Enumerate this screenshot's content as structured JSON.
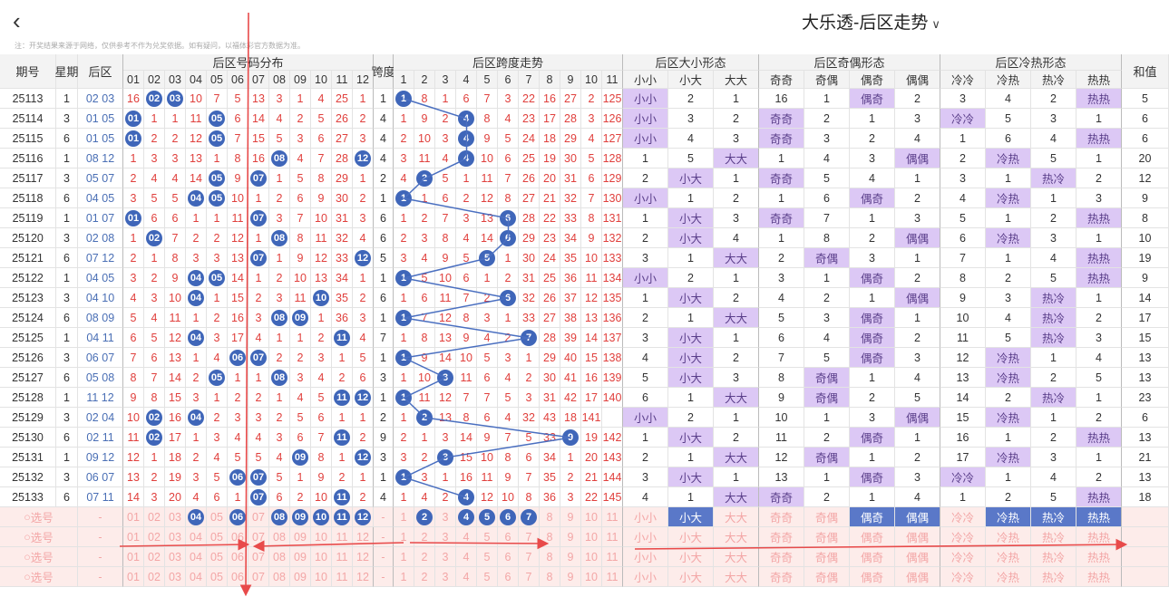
{
  "header": {
    "title": "大乐透-后区走势",
    "notice": "注：开奖结果来源于网络，仅供参考不作为兑奖依据。如有疑问，以福体彩官方数据为准。"
  },
  "columns": {
    "issue": "期号",
    "week": "星期",
    "back": "后区",
    "dist_group": "后区号码分布",
    "span": "跨度",
    "span_group": "后区跨度走势",
    "size_group": "后区大小形态",
    "oddeven_group": "后区奇偶形态",
    "hotcold_group": "后区冷热形态",
    "sum": "和值",
    "nums": [
      "01",
      "02",
      "03",
      "04",
      "05",
      "06",
      "07",
      "08",
      "09",
      "10",
      "11",
      "12"
    ],
    "spans": [
      "1",
      "2",
      "3",
      "4",
      "5",
      "6",
      "7",
      "8",
      "9",
      "10",
      "11"
    ],
    "size": [
      "小小",
      "小大",
      "大大"
    ],
    "oddeven": [
      "奇奇",
      "奇偶",
      "偶奇",
      "偶偶"
    ],
    "hotcold": [
      "冷冷",
      "冷热",
      "热冷",
      "热热"
    ]
  },
  "rows": [
    {
      "issue": "25113",
      "week": "1",
      "back": "02 03",
      "nums": [
        "16",
        "02",
        "03",
        "10",
        "7",
        "5",
        "13",
        "3",
        "1",
        "4",
        "25",
        "1"
      ],
      "balls": [
        2,
        3
      ],
      "span": "1",
      "spanvals": [
        "1",
        "8",
        "1",
        "6",
        "7",
        "3",
        "22",
        "16",
        "27",
        "2",
        "125"
      ],
      "spanball": 1,
      "size": [
        "小小",
        "2",
        "1"
      ],
      "sizeHit": 0,
      "oe": [
        "16",
        "1",
        "偶奇",
        "2"
      ],
      "oeHit": 2,
      "hc": [
        "3",
        "4",
        "2",
        "热热"
      ],
      "hcHit": 3,
      "sum": "5"
    },
    {
      "issue": "25114",
      "week": "3",
      "back": "01 05",
      "nums": [
        "01",
        "1",
        "1",
        "11",
        "05",
        "6",
        "14",
        "4",
        "2",
        "5",
        "26",
        "2"
      ],
      "balls": [
        1,
        5
      ],
      "span": "4",
      "spanvals": [
        "1",
        "9",
        "2",
        "4",
        "8",
        "4",
        "23",
        "17",
        "28",
        "3",
        "126"
      ],
      "spanball": 4,
      "size": [
        "小小",
        "3",
        "2"
      ],
      "sizeHit": 0,
      "oe": [
        "奇奇",
        "2",
        "1",
        "3"
      ],
      "oeHit": 0,
      "hc": [
        "冷冷",
        "5",
        "3",
        "1"
      ],
      "hcHit": 0,
      "sum": "6"
    },
    {
      "issue": "25115",
      "week": "6",
      "back": "01 05",
      "nums": [
        "01",
        "2",
        "2",
        "12",
        "05",
        "7",
        "15",
        "5",
        "3",
        "6",
        "27",
        "3"
      ],
      "balls": [
        1,
        5
      ],
      "span": "4",
      "spanvals": [
        "2",
        "10",
        "3",
        "4",
        "9",
        "5",
        "24",
        "18",
        "29",
        "4",
        "127"
      ],
      "spanball": 4,
      "size": [
        "小小",
        "4",
        "3"
      ],
      "sizeHit": 0,
      "oe": [
        "奇奇",
        "3",
        "2",
        "4"
      ],
      "oeHit": 0,
      "hc": [
        "1",
        "6",
        "4",
        "热热"
      ],
      "hcHit": 3,
      "sum": "6"
    },
    {
      "issue": "25116",
      "week": "1",
      "back": "08 12",
      "nums": [
        "1",
        "3",
        "3",
        "13",
        "1",
        "8",
        "16",
        "08",
        "4",
        "7",
        "28",
        "12"
      ],
      "balls": [
        8,
        12
      ],
      "span": "4",
      "spanvals": [
        "3",
        "11",
        "4",
        "4",
        "10",
        "6",
        "25",
        "19",
        "30",
        "5",
        "128"
      ],
      "spanball": 4,
      "size": [
        "1",
        "5",
        "大大"
      ],
      "sizeHit": 2,
      "oe": [
        "1",
        "4",
        "3",
        "偶偶"
      ],
      "oeHit": 3,
      "hc": [
        "2",
        "冷热",
        "5",
        "1"
      ],
      "hcHit": 1,
      "sum": "20"
    },
    {
      "issue": "25117",
      "week": "3",
      "back": "05 07",
      "nums": [
        "2",
        "4",
        "4",
        "14",
        "05",
        "9",
        "07",
        "1",
        "5",
        "8",
        "29",
        "1"
      ],
      "balls": [
        5,
        7
      ],
      "span": "2",
      "spanvals": [
        "4",
        "2",
        "5",
        "1",
        "11",
        "7",
        "26",
        "20",
        "31",
        "6",
        "129"
      ],
      "spanball": 2,
      "size": [
        "2",
        "小大",
        "1"
      ],
      "sizeHit": 1,
      "oe": [
        "奇奇",
        "5",
        "4",
        "1"
      ],
      "oeHit": 0,
      "hc": [
        "3",
        "1",
        "热冷",
        "2"
      ],
      "hcHit": 2,
      "sum": "12"
    },
    {
      "issue": "25118",
      "week": "6",
      "back": "04 05",
      "nums": [
        "3",
        "5",
        "5",
        "04",
        "05",
        "10",
        "1",
        "2",
        "6",
        "9",
        "30",
        "2"
      ],
      "balls": [
        4,
        5
      ],
      "span": "1",
      "spanvals": [
        "1",
        "1",
        "6",
        "2",
        "12",
        "8",
        "27",
        "21",
        "32",
        "7",
        "130"
      ],
      "spanball": 1,
      "size": [
        "小小",
        "1",
        "2"
      ],
      "sizeHit": 0,
      "oe": [
        "1",
        "6",
        "偶奇",
        "2"
      ],
      "oeHit": 2,
      "hc": [
        "4",
        "冷热",
        "1",
        "3"
      ],
      "hcHit": 1,
      "sum": "9"
    },
    {
      "issue": "25119",
      "week": "1",
      "back": "01 07",
      "nums": [
        "01",
        "6",
        "6",
        "1",
        "1",
        "11",
        "07",
        "3",
        "7",
        "10",
        "31",
        "3"
      ],
      "balls": [
        1,
        7
      ],
      "span": "6",
      "spanvals": [
        "1",
        "2",
        "7",
        "3",
        "13",
        "6",
        "28",
        "22",
        "33",
        "8",
        "131"
      ],
      "spanball": 6,
      "size": [
        "1",
        "小大",
        "3"
      ],
      "sizeHit": 1,
      "oe": [
        "奇奇",
        "7",
        "1",
        "3"
      ],
      "oeHit": 0,
      "hc": [
        "5",
        "1",
        "2",
        "热热"
      ],
      "hcHit": 3,
      "sum": "8"
    },
    {
      "issue": "25120",
      "week": "3",
      "back": "02 08",
      "nums": [
        "1",
        "02",
        "7",
        "2",
        "2",
        "12",
        "1",
        "08",
        "8",
        "11",
        "32",
        "4"
      ],
      "balls": [
        2,
        8
      ],
      "span": "6",
      "spanvals": [
        "2",
        "3",
        "8",
        "4",
        "14",
        "6",
        "29",
        "23",
        "34",
        "9",
        "132"
      ],
      "spanball": 6,
      "size": [
        "2",
        "小大",
        "4"
      ],
      "sizeHit": 1,
      "oe": [
        "1",
        "8",
        "2",
        "偶偶"
      ],
      "oeHit": 3,
      "hc": [
        "6",
        "冷热",
        "3",
        "1"
      ],
      "hcHit": 1,
      "sum": "10"
    },
    {
      "issue": "25121",
      "week": "6",
      "back": "07 12",
      "nums": [
        "2",
        "1",
        "8",
        "3",
        "3",
        "13",
        "07",
        "1",
        "9",
        "12",
        "33",
        "12"
      ],
      "balls": [
        7,
        12
      ],
      "span": "5",
      "spanvals": [
        "3",
        "4",
        "9",
        "5",
        "5",
        "1",
        "30",
        "24",
        "35",
        "10",
        "133"
      ],
      "spanball": 5,
      "size": [
        "3",
        "1",
        "大大"
      ],
      "sizeHit": 2,
      "oe": [
        "2",
        "奇偶",
        "3",
        "1"
      ],
      "oeHit": 1,
      "hc": [
        "7",
        "1",
        "4",
        "热热"
      ],
      "hcHit": 3,
      "sum": "19"
    },
    {
      "issue": "25122",
      "week": "1",
      "back": "04 05",
      "nums": [
        "3",
        "2",
        "9",
        "04",
        "05",
        "14",
        "1",
        "2",
        "10",
        "13",
        "34",
        "1"
      ],
      "balls": [
        4,
        5
      ],
      "span": "1",
      "spanvals": [
        "1",
        "5",
        "10",
        "6",
        "1",
        "2",
        "31",
        "25",
        "36",
        "11",
        "134"
      ],
      "spanball": 1,
      "size": [
        "小小",
        "2",
        "1"
      ],
      "sizeHit": 0,
      "oe": [
        "3",
        "1",
        "偶奇",
        "2"
      ],
      "oeHit": 2,
      "hc": [
        "8",
        "2",
        "5",
        "热热"
      ],
      "hcHit": 3,
      "sum": "9"
    },
    {
      "issue": "25123",
      "week": "3",
      "back": "04 10",
      "nums": [
        "4",
        "3",
        "10",
        "04",
        "1",
        "15",
        "2",
        "3",
        "11",
        "10",
        "35",
        "2"
      ],
      "balls": [
        4,
        10
      ],
      "span": "6",
      "spanvals": [
        "1",
        "6",
        "11",
        "7",
        "2",
        "6",
        "32",
        "26",
        "37",
        "12",
        "135"
      ],
      "spanball": 6,
      "size": [
        "1",
        "小大",
        "2"
      ],
      "sizeHit": 1,
      "oe": [
        "4",
        "2",
        "1",
        "偶偶"
      ],
      "oeHit": 3,
      "hc": [
        "9",
        "3",
        "热冷",
        "1"
      ],
      "hcHit": 2,
      "sum": "14"
    },
    {
      "issue": "25124",
      "week": "6",
      "back": "08 09",
      "nums": [
        "5",
        "4",
        "11",
        "1",
        "2",
        "16",
        "3",
        "08",
        "09",
        "1",
        "36",
        "3"
      ],
      "balls": [
        8,
        9
      ],
      "span": "1",
      "spanvals": [
        "1",
        "7",
        "12",
        "8",
        "3",
        "1",
        "33",
        "27",
        "38",
        "13",
        "136"
      ],
      "spanball": 1,
      "size": [
        "2",
        "1",
        "大大"
      ],
      "sizeHit": 2,
      "oe": [
        "5",
        "3",
        "偶奇",
        "1"
      ],
      "oeHit": 2,
      "hc": [
        "10",
        "4",
        "热冷",
        "2"
      ],
      "hcHit": 2,
      "sum": "17"
    },
    {
      "issue": "25125",
      "week": "1",
      "back": "04 11",
      "nums": [
        "6",
        "5",
        "12",
        "04",
        "3",
        "17",
        "4",
        "1",
        "1",
        "2",
        "11",
        "4"
      ],
      "balls": [
        4,
        11
      ],
      "span": "7",
      "spanvals": [
        "1",
        "8",
        "13",
        "9",
        "4",
        "2",
        "7",
        "28",
        "39",
        "14",
        "137"
      ],
      "spanball": 7,
      "size": [
        "3",
        "小大",
        "1"
      ],
      "sizeHit": 1,
      "oe": [
        "6",
        "4",
        "偶奇",
        "2"
      ],
      "oeHit": 2,
      "hc": [
        "11",
        "5",
        "热冷",
        "3"
      ],
      "hcHit": 2,
      "sum": "15"
    },
    {
      "issue": "25126",
      "week": "3",
      "back": "06 07",
      "nums": [
        "7",
        "6",
        "13",
        "1",
        "4",
        "06",
        "07",
        "2",
        "2",
        "3",
        "1",
        "5"
      ],
      "balls": [
        6,
        7
      ],
      "span": "1",
      "spanvals": [
        "1",
        "9",
        "14",
        "10",
        "5",
        "3",
        "1",
        "29",
        "40",
        "15",
        "138"
      ],
      "spanball": 1,
      "size": [
        "4",
        "小大",
        "2"
      ],
      "sizeHit": 1,
      "oe": [
        "7",
        "5",
        "偶奇",
        "3"
      ],
      "oeHit": 2,
      "hc": [
        "12",
        "冷热",
        "1",
        "4"
      ],
      "hcHit": 1,
      "sum": "13"
    },
    {
      "issue": "25127",
      "week": "6",
      "back": "05 08",
      "nums": [
        "8",
        "7",
        "14",
        "2",
        "05",
        "1",
        "1",
        "08",
        "3",
        "4",
        "2",
        "6"
      ],
      "balls": [
        5,
        8
      ],
      "span": "3",
      "spanvals": [
        "1",
        "10",
        "3",
        "11",
        "6",
        "4",
        "2",
        "30",
        "41",
        "16",
        "139"
      ],
      "spanball": 3,
      "size": [
        "5",
        "小大",
        "3"
      ],
      "sizeHit": 1,
      "oe": [
        "8",
        "奇偶",
        "1",
        "4"
      ],
      "oeHit": 1,
      "hc": [
        "13",
        "冷热",
        "2",
        "5"
      ],
      "hcHit": 1,
      "sum": "13"
    },
    {
      "issue": "25128",
      "week": "1",
      "back": "11 12",
      "nums": [
        "9",
        "8",
        "15",
        "3",
        "1",
        "2",
        "2",
        "1",
        "4",
        "5",
        "11",
        "12"
      ],
      "balls": [
        11,
        12
      ],
      "span": "1",
      "spanvals": [
        "1",
        "11",
        "12",
        "7",
        "7",
        "5",
        "3",
        "31",
        "42",
        "17",
        "140"
      ],
      "spanball": 1,
      "size": [
        "6",
        "1",
        "大大"
      ],
      "sizeHit": 2,
      "oe": [
        "9",
        "奇偶",
        "2",
        "5"
      ],
      "oeHit": 1,
      "hc": [
        "14",
        "2",
        "热冷",
        "1"
      ],
      "hcHit": 2,
      "sum": "23"
    },
    {
      "issue": "25129",
      "week": "3",
      "back": "02 04",
      "nums": [
        "10",
        "02",
        "16",
        "04",
        "2",
        "3",
        "3",
        "2",
        "5",
        "6",
        "1",
        "1"
      ],
      "balls": [
        2,
        4
      ],
      "span": "2",
      "spanvals": [
        "1",
        "2",
        "13",
        "8",
        "6",
        "4",
        "32",
        "43",
        "18",
        "141",
        ""
      ],
      "spanball": 2,
      "size": [
        "小小",
        "2",
        "1"
      ],
      "sizeHit": 0,
      "oe": [
        "10",
        "1",
        "3",
        "偶偶"
      ],
      "oeHit": 3,
      "hc": [
        "15",
        "冷热",
        "1",
        "2"
      ],
      "hcHit": 1,
      "sum": "6"
    },
    {
      "issue": "25130",
      "week": "6",
      "back": "02 11",
      "nums": [
        "11",
        "02",
        "17",
        "1",
        "3",
        "4",
        "4",
        "3",
        "6",
        "7",
        "11",
        "2"
      ],
      "balls": [
        2,
        11
      ],
      "span": "9",
      "spanvals": [
        "2",
        "1",
        "3",
        "14",
        "9",
        "7",
        "5",
        "33",
        "9",
        "19",
        "142"
      ],
      "spanball": 9,
      "size": [
        "1",
        "小大",
        "2"
      ],
      "sizeHit": 1,
      "oe": [
        "11",
        "2",
        "偶奇",
        "1"
      ],
      "oeHit": 2,
      "hc": [
        "16",
        "1",
        "2",
        "热热"
      ],
      "hcHit": 3,
      "sum": "13"
    },
    {
      "issue": "25131",
      "week": "1",
      "back": "09 12",
      "nums": [
        "12",
        "1",
        "18",
        "2",
        "4",
        "5",
        "5",
        "4",
        "09",
        "8",
        "1",
        "12"
      ],
      "balls": [
        9,
        12
      ],
      "span": "3",
      "spanvals": [
        "3",
        "2",
        "3",
        "15",
        "10",
        "8",
        "6",
        "34",
        "1",
        "20",
        "143"
      ],
      "spanball": 3,
      "size": [
        "2",
        "1",
        "大大"
      ],
      "sizeHit": 2,
      "oe": [
        "12",
        "奇偶",
        "1",
        "2"
      ],
      "oeHit": 1,
      "hc": [
        "17",
        "冷热",
        "3",
        "1"
      ],
      "hcHit": 1,
      "sum": "21"
    },
    {
      "issue": "25132",
      "week": "3",
      "back": "06 07",
      "nums": [
        "13",
        "2",
        "19",
        "3",
        "5",
        "06",
        "07",
        "5",
        "1",
        "9",
        "2",
        "1"
      ],
      "balls": [
        6,
        7
      ],
      "span": "1",
      "spanvals": [
        "1",
        "3",
        "1",
        "16",
        "11",
        "9",
        "7",
        "35",
        "2",
        "21",
        "144"
      ],
      "spanball": 1,
      "size": [
        "3",
        "小大",
        "1"
      ],
      "sizeHit": 1,
      "oe": [
        "13",
        "1",
        "偶奇",
        "3"
      ],
      "oeHit": 2,
      "hc": [
        "冷冷",
        "1",
        "4",
        "2"
      ],
      "hcHit": 0,
      "sum": "13"
    },
    {
      "issue": "25133",
      "week": "6",
      "back": "07 11",
      "nums": [
        "14",
        "3",
        "20",
        "4",
        "6",
        "1",
        "07",
        "6",
        "2",
        "10",
        "11",
        "2"
      ],
      "balls": [
        7,
        11
      ],
      "span": "4",
      "spanvals": [
        "1",
        "4",
        "2",
        "4",
        "12",
        "10",
        "8",
        "36",
        "3",
        "22",
        "145"
      ],
      "spanball": 4,
      "size": [
        "4",
        "1",
        "大大"
      ],
      "sizeHit": 2,
      "oe": [
        "奇奇",
        "2",
        "1",
        "4"
      ],
      "oeHit": 0,
      "hc": [
        "1",
        "2",
        "5",
        "热热"
      ],
      "hcHit": 3,
      "sum": "18"
    }
  ],
  "picker": {
    "label": "选号",
    "dash": "-",
    "selected_nums": [
      4,
      6,
      8,
      9,
      10,
      11,
      12
    ],
    "selected_spans": [
      2,
      4,
      5,
      6,
      7
    ],
    "selected_size": [
      1
    ],
    "selected_oe": [
      2,
      3
    ],
    "selected_hc": [
      1,
      2,
      3
    ]
  },
  "colors": {
    "ball": "#3f66b9",
    "pattern_hit": "#dcc8f5",
    "picker_bg": "#fdecea",
    "red_text": "#e0403d",
    "arrow": "#e84a4a"
  }
}
